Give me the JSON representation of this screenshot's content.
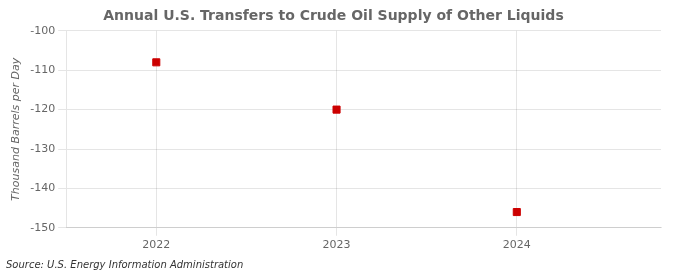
{
  "chart_data": {
    "type": "scatter",
    "title": "Annual U.S. Transfers to Crude Oil Supply of Other Liquids",
    "ylabel": "Thousand Barrels per Day",
    "annotations": [
      "Source: U.S. Energy Information Administration"
    ],
    "x": [
      2022,
      2023,
      2024
    ],
    "values": [
      -108,
      -120,
      -146
    ],
    "color": "#cc0000",
    "marker": "square",
    "xlim": [
      2021.5,
      2024.8
    ],
    "xticks": [
      2022,
      2023,
      2024
    ],
    "ylim": [
      -150,
      -100
    ],
    "yticks": [
      -100,
      -110,
      -120,
      -130,
      -140,
      -150
    ],
    "grid": true
  }
}
